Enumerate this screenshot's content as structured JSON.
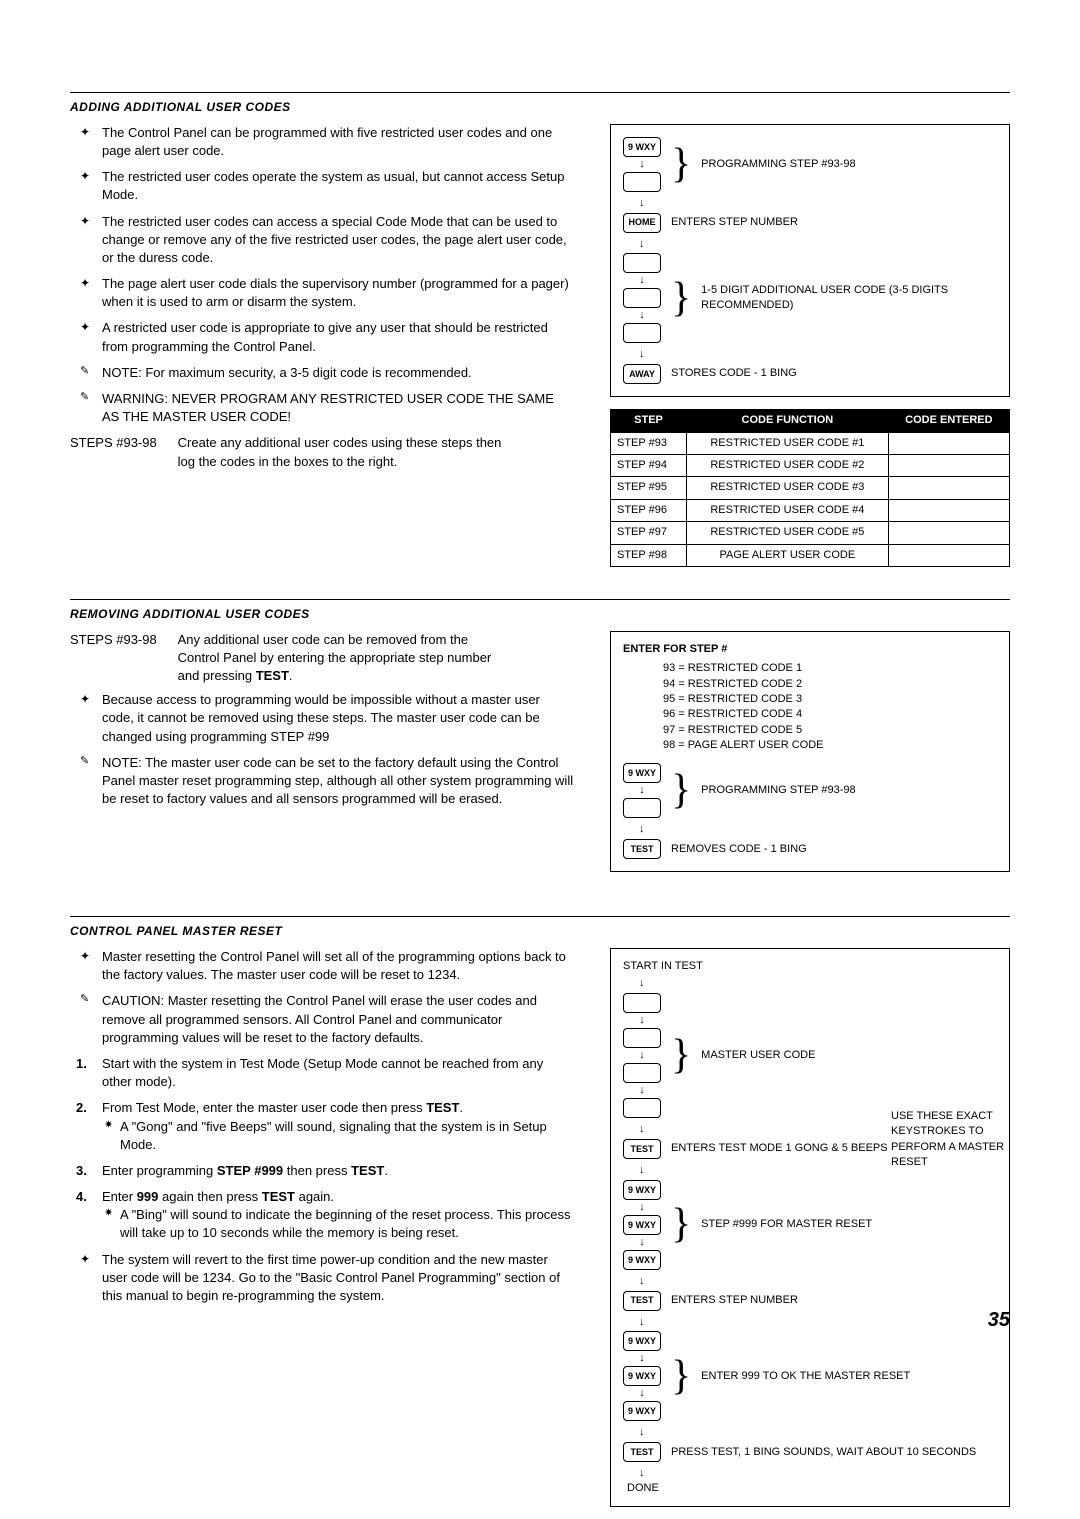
{
  "page_number": "35",
  "sections": {
    "adding": {
      "title": "ADDING ADDITIONAL USER CODES",
      "bullets": [
        {
          "marker": "arrow",
          "text": "The Control Panel can be programmed with five restricted user codes and one page alert user code."
        },
        {
          "marker": "arrow",
          "text": "The restricted user codes operate the system as usual, but cannot access Setup Mode."
        },
        {
          "marker": "arrow",
          "text": "The restricted user codes can access a special Code Mode that can be used to change or remove any of the five restricted user codes, the page alert user code, or the duress code."
        },
        {
          "marker": "arrow",
          "text": "The page alert user code dials the supervisory number (programmed for a pager) when it is used to arm or disarm the system."
        },
        {
          "marker": "arrow",
          "text": "A restricted user code is appropriate to give any user that should be restricted from programming the Control Panel."
        },
        {
          "marker": "note",
          "text": "NOTE: For maximum security, a 3-5 digit code is recommended."
        },
        {
          "marker": "note",
          "text": "WARNING: NEVER PROGRAM ANY RESTRICTED USER CODE THE SAME AS THE MASTER USER CODE!"
        }
      ],
      "steps_label": "STEPS #93-98",
      "steps_text": "Create any additional user codes using these steps then log the codes in the boxes to the right."
    },
    "removing": {
      "title": "REMOVING ADDITIONAL USER CODES",
      "steps_label": "STEPS #93-98",
      "steps_text_pre": "Any additional user code can be removed from the Control Panel by entering the appropriate step number and pressing ",
      "steps_text_bold": "TEST",
      "bullets": [
        {
          "marker": "arrow",
          "text": "Because access to programming would be impossible without a master user code, it cannot be removed using these steps. The master user code can be changed using programming STEP #99"
        },
        {
          "marker": "note",
          "text": "NOTE: The master user code can be set to the factory default using the Control Panel master reset programming step, although all other system programming will be reset to factory values and all sensors programmed will be erased."
        }
      ]
    },
    "reset": {
      "title": "CONTROL PANEL MASTER RESET",
      "bullets": [
        {
          "marker": "arrow",
          "text": "Master resetting the Control Panel will set all of the programming options back to the factory values. The master user code will be reset to 1234."
        },
        {
          "marker": "note",
          "text": "CAUTION: Master resetting the Control Panel will erase the user codes and remove all programmed sensors. All Control Panel and communicator programming values will be reset to the factory defaults."
        }
      ],
      "numlist": [
        {
          "n": "1.",
          "text": "Start with the system in Test Mode (Setup Mode cannot be reached from any other mode)."
        },
        {
          "n": "2.",
          "text_pre": "From Test Mode, enter the master user code then press ",
          "text_bold": "TEST",
          "text_post": ".",
          "sub": [
            "A \"Gong\" and \"five Beeps\" will sound, signaling that the system is in Setup Mode."
          ]
        },
        {
          "n": "3.",
          "text_pre": "Enter programming ",
          "text_bold": "STEP #999",
          "text_mid": " then press ",
          "text_bold2": "TEST",
          "text_post": "."
        },
        {
          "n": "4.",
          "text_pre": "Enter ",
          "text_bold": "999",
          "text_mid": " again then press ",
          "text_bold2": "TEST",
          "text_post": " again.",
          "sub": [
            "A \"Bing\" will sound to indicate the beginning of the reset process. This process will take up to 10 seconds while the memory is being reset."
          ]
        }
      ],
      "tail": {
        "marker": "arrow",
        "text": "The system will revert to the first time power-up condition and the new master user code will be 1234. Go to the \"Basic Control Panel Programming\" section of this manual to begin re-programming the system."
      }
    }
  },
  "flowboxes": {
    "add": {
      "rows": [
        {
          "keys": [
            "9 WXY",
            ""
          ],
          "brace": true,
          "text": "PROGRAMMING STEP #93-98"
        },
        {
          "keys": [
            "HOME"
          ],
          "text": "ENTERS STEP NUMBER"
        },
        {
          "keys": [
            "",
            "",
            ""
          ],
          "brace": true,
          "text": "1-5 DIGIT ADDITIONAL USER CODE (3-5 DIGITS RECOMMENDED)"
        },
        {
          "keys": [
            "AWAY"
          ],
          "text": "STORES CODE - 1 BING"
        }
      ]
    },
    "remove": {
      "title": "ENTER FOR STEP #",
      "codes": [
        "93 = RESTRICTED CODE 1",
        "94 = RESTRICTED CODE 2",
        "95 = RESTRICTED CODE 3",
        "96 = RESTRICTED CODE 4",
        "97 = RESTRICTED CODE 5",
        "98 = PAGE ALERT USER CODE"
      ],
      "rows": [
        {
          "keys": [
            "9 WXY",
            ""
          ],
          "brace": true,
          "text": "PROGRAMMING STEP #93-98"
        },
        {
          "keys": [
            "TEST"
          ],
          "text": "REMOVES CODE - 1 BING"
        }
      ]
    },
    "reset": {
      "start": "START IN TEST",
      "rows": [
        {
          "keys": [
            "",
            "",
            "",
            ""
          ],
          "brace": true,
          "text": "MASTER USER CODE"
        },
        {
          "keys": [
            "TEST"
          ],
          "text": "ENTERS TEST MODE 1 GONG & 5 BEEPS"
        },
        {
          "keys": [
            "9 WXY",
            "9 WXY",
            "9 WXY"
          ],
          "brace": true,
          "text": "STEP #999 FOR MASTER RESET"
        },
        {
          "keys": [
            "TEST"
          ],
          "text": "ENTERS STEP NUMBER"
        },
        {
          "keys": [
            "9 WXY",
            "9 WXY",
            "9 WXY"
          ],
          "brace": true,
          "text": "ENTER 999 TO OK THE MASTER RESET"
        },
        {
          "keys": [
            "TEST"
          ],
          "text": "PRESS TEST, 1 BING SOUNDS, WAIT ABOUT 10 SECONDS"
        }
      ],
      "done": "DONE",
      "side_text": "USE THESE EXACT KEYSTROKES TO PERFORM A MASTER RESET"
    }
  },
  "codes_table": {
    "headers": [
      "STEP",
      "CODE FUNCTION",
      "CODE ENTERED"
    ],
    "rows": [
      [
        "STEP #93",
        "RESTRICTED USER CODE #1",
        ""
      ],
      [
        "STEP #94",
        "RESTRICTED USER CODE #2",
        ""
      ],
      [
        "STEP #95",
        "RESTRICTED USER CODE #3",
        ""
      ],
      [
        "STEP #96",
        "RESTRICTED USER CODE #4",
        ""
      ],
      [
        "STEP #97",
        "RESTRICTED USER CODE #5",
        ""
      ],
      [
        "STEP #98",
        "PAGE ALERT USER CODE",
        ""
      ]
    ]
  },
  "colors": {
    "rule": "#000000",
    "text": "#000000",
    "table_header_bg": "#000000",
    "table_header_fg": "#ffffff"
  }
}
